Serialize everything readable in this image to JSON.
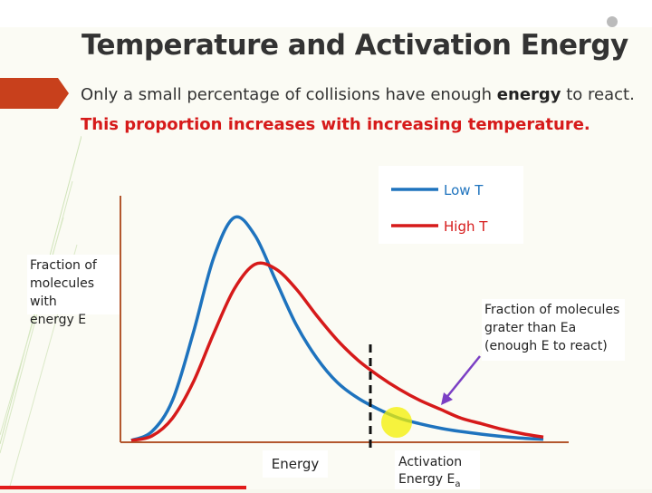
{
  "slide": {
    "title": "Temperature and Activation Energy",
    "line1_pre": "Only a small percentage of collisions have enough ",
    "line1_bold": "energy",
    "line1_post": " to react.",
    "line2": "This proportion increases with increasing temperature."
  },
  "player": {
    "progress_fraction": 0.378
  },
  "chart_data": {
    "type": "line",
    "title": "",
    "xlabel": "Energy",
    "ylabel": "Fraction of molecules with energy E",
    "ylabel_lines": [
      "Fraction of",
      "molecules with",
      "energy E"
    ],
    "threshold_label_lines": [
      "Activation",
      "Energy E"
    ],
    "threshold_subscript": "a",
    "legend_position": "top-right",
    "annotation_lines": [
      "Fraction of molecules",
      "grater than Ea",
      "(enough E to react)"
    ],
    "series": [
      {
        "name": "Low T",
        "color": "#1e73be",
        "x": [
          0,
          0.05,
          0.1,
          0.15,
          0.2,
          0.25,
          0.3,
          0.35,
          0.4,
          0.45,
          0.5,
          0.55,
          0.6,
          0.65,
          0.7,
          0.75,
          0.8,
          0.85,
          0.9,
          0.95,
          1.0
        ],
        "y": [
          0,
          0.04,
          0.18,
          0.48,
          0.82,
          1.0,
          0.92,
          0.72,
          0.52,
          0.37,
          0.26,
          0.19,
          0.14,
          0.1,
          0.075,
          0.055,
          0.04,
          0.028,
          0.018,
          0.01,
          0.005
        ]
      },
      {
        "name": "High T",
        "color": "#d61a1a",
        "x": [
          0,
          0.05,
          0.1,
          0.15,
          0.2,
          0.25,
          0.3,
          0.35,
          0.4,
          0.45,
          0.5,
          0.55,
          0.6,
          0.65,
          0.7,
          0.75,
          0.8,
          0.85,
          0.9,
          0.95,
          1.0
        ],
        "y": [
          0,
          0.02,
          0.1,
          0.26,
          0.48,
          0.68,
          0.79,
          0.77,
          0.68,
          0.56,
          0.45,
          0.36,
          0.29,
          0.23,
          0.18,
          0.14,
          0.1,
          0.075,
          0.05,
          0.03,
          0.015
        ]
      }
    ],
    "threshold_x": 0.6,
    "xlim": [
      0,
      1.0
    ],
    "ylim": [
      0,
      1.0
    ]
  }
}
